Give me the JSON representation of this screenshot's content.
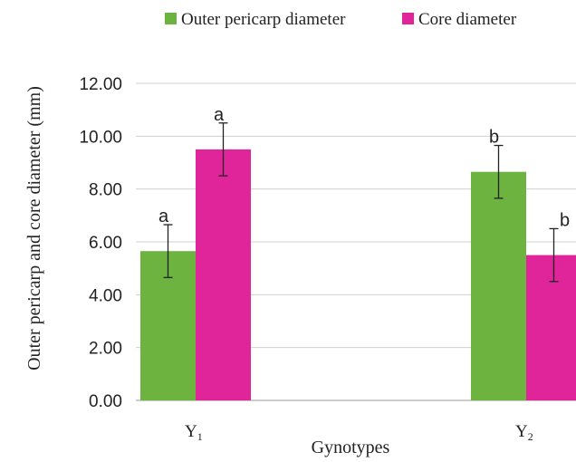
{
  "chart_data": {
    "type": "bar",
    "categories": [
      "Y",
      "Y"
    ],
    "category_subscripts": [
      "1",
      "2"
    ],
    "series": [
      {
        "name": "Outer pericarp diameter",
        "color": "#6cb33f",
        "values": [
          5.65,
          8.65
        ],
        "errors": [
          1.0,
          1.0
        ],
        "sig_letters": [
          "a",
          "b"
        ]
      },
      {
        "name": "Core diameter",
        "color": "#e0249a",
        "values": [
          9.5,
          5.5
        ],
        "errors": [
          1.0,
          1.0
        ],
        "sig_letters": [
          "a",
          "b"
        ]
      }
    ],
    "xlabel": "Gynotypes",
    "ylabel": "Outer pericarp and core diameter (mm)",
    "ylim": [
      0,
      12
    ],
    "yticks": [
      "0.00",
      "2.00",
      "4.00",
      "6.00",
      "8.00",
      "10.00",
      "12.00"
    ],
    "grid": true,
    "legend_position": "top"
  }
}
